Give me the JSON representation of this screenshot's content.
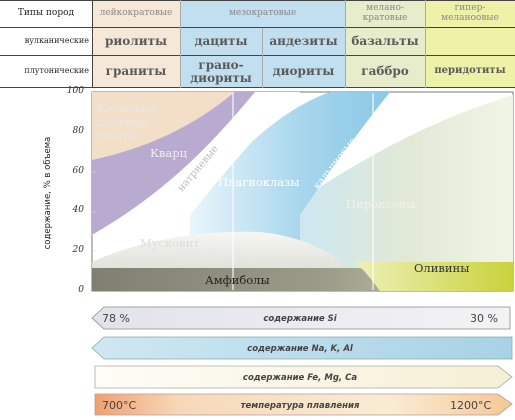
{
  "table": {
    "corner_header": "Типы пород",
    "column_headers": [
      "лейкократовые",
      "мезократовые",
      "мелано-кратовые",
      "гипер-меланоовые"
    ],
    "rows": [
      {
        "label": "вулканические",
        "cells": [
          "риолиты",
          "дациты",
          "андезиты",
          "базальты",
          ""
        ]
      },
      {
        "label": "плутонические",
        "cells": [
          "граниты",
          "грано-диориты",
          "диориты",
          "габбро",
          "перидотиты"
        ]
      }
    ]
  },
  "chart_data": {
    "type": "area",
    "ylabel": "содержание, % в объема",
    "ylim": [
      0,
      100
    ],
    "yticks": [
      0,
      20,
      40,
      60,
      80,
      100
    ],
    "regions": [
      {
        "name": "Калиевые полевые шпаты",
        "color": "#f2dcc4"
      },
      {
        "name": "Кварц",
        "color": "#b4a6cc"
      },
      {
        "name": "натриевые",
        "color": "#ffffff"
      },
      {
        "name": "Плагиоклазы",
        "color": "#aad7ec"
      },
      {
        "name": "кальциевые",
        "color": "#8cc9e7"
      },
      {
        "name": "Пироксены",
        "color": "#dfe6cf"
      },
      {
        "name": "Мусковит",
        "color": "#f4f4f0"
      },
      {
        "name": "Биотит",
        "color": "#d2d2ca"
      },
      {
        "name": "Амфиболы",
        "color": "#8d8e7c"
      },
      {
        "name": "Оливины",
        "color": "#dde36e"
      }
    ]
  },
  "gradients": [
    {
      "label": "содержание Si",
      "left_value": "78 %",
      "right_value": "30 %",
      "direction": "left"
    },
    {
      "label": "содержание Na, K, Al",
      "left_value": "",
      "right_value": "",
      "direction": "left"
    },
    {
      "label": "содержание Fe, Mg, Ca",
      "left_value": "",
      "right_value": "",
      "direction": "right"
    },
    {
      "label": "температура плавления",
      "left_value": "700°C",
      "right_value": "1200°C",
      "direction": "right"
    }
  ]
}
